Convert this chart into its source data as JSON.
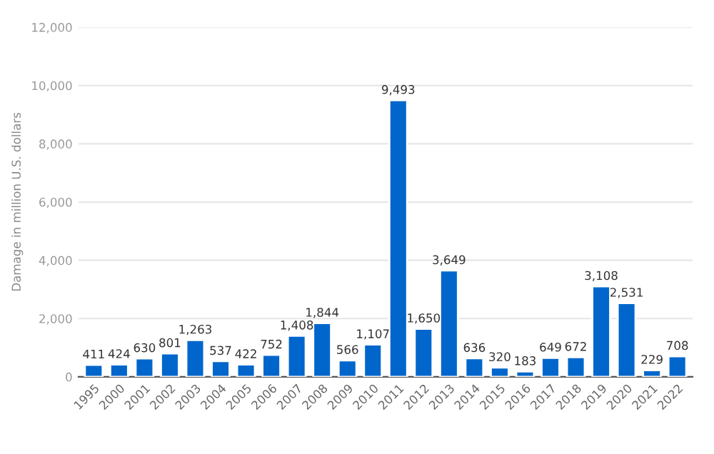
{
  "chart_data": {
    "type": "bar",
    "ylabel": "Damage in million U.S. dollars",
    "categories": [
      "1995",
      "2000",
      "2001",
      "2002",
      "2003",
      "2004",
      "2005",
      "2006",
      "2007",
      "2008",
      "2009",
      "2010",
      "2011",
      "2012",
      "2013",
      "2014",
      "2015",
      "2016",
      "2017",
      "2018",
      "2019",
      "2020",
      "2021",
      "2022"
    ],
    "values": [
      411,
      424,
      630,
      801,
      1263,
      537,
      422,
      752,
      1408,
      1844,
      566,
      1107,
      9493,
      1650,
      3649,
      636,
      320,
      183,
      649,
      672,
      3108,
      2531,
      229,
      708
    ],
    "value_labels": [
      "411",
      "424",
      "630",
      "801",
      "1,263",
      "537",
      "422",
      "752",
      "1,408",
      "1,844",
      "566",
      "1,107",
      "9,493",
      "1,650",
      "3,649",
      "636",
      "320",
      "183",
      "649",
      "672",
      "3,108",
      "2,531",
      "229",
      "708"
    ],
    "color": "#0066cc",
    "ylim": [
      0,
      12000
    ],
    "yticks": [
      {
        "value": 0,
        "label": "0"
      },
      {
        "value": 2000,
        "label": "2,000"
      },
      {
        "value": 4000,
        "label": "4,000"
      },
      {
        "value": 6000,
        "label": "6,000"
      },
      {
        "value": 8000,
        "label": "8,000"
      },
      {
        "value": 10000,
        "label": "10,000"
      },
      {
        "value": 12000,
        "label": "12,000"
      }
    ],
    "grid": "y",
    "legend": false
  }
}
